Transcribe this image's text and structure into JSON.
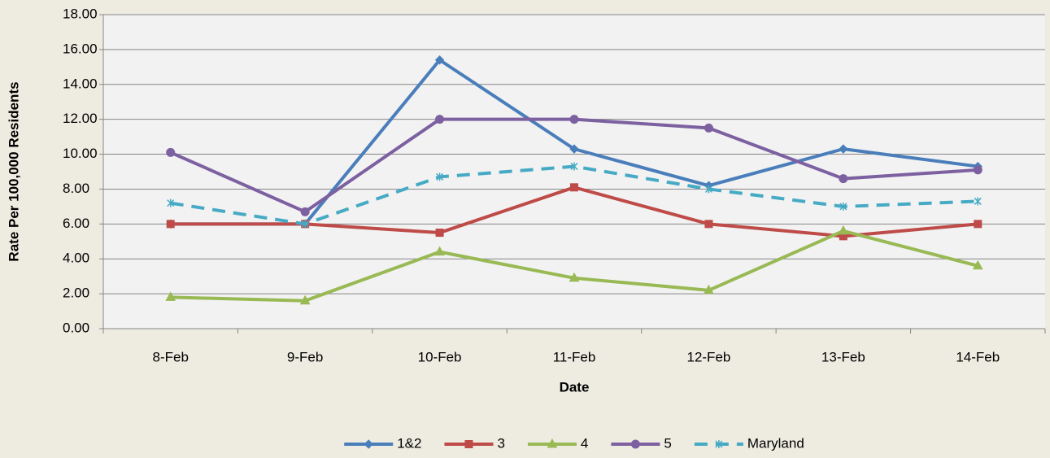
{
  "chart_data": {
    "type": "line",
    "y_label": "Rate Per 100,000 Residents",
    "x_label": "Date",
    "categories": [
      "8-Feb",
      "9-Feb",
      "10-Feb",
      "11-Feb",
      "12-Feb",
      "13-Feb",
      "14-Feb"
    ],
    "series": [
      {
        "name": "1&2",
        "color": "#4a7ebb",
        "marker": "diamond",
        "line_style": "solid",
        "values": [
          6.0,
          6.0,
          15.4,
          10.3,
          8.2,
          10.3,
          9.3
        ]
      },
      {
        "name": "3",
        "color": "#be4b48",
        "marker": "square",
        "line_style": "solid",
        "values": [
          6.0,
          6.0,
          5.5,
          8.1,
          6.0,
          5.3,
          6.0
        ]
      },
      {
        "name": "4",
        "color": "#98b954",
        "marker": "triangle",
        "line_style": "solid",
        "values": [
          1.8,
          1.6,
          4.4,
          2.9,
          2.2,
          5.6,
          3.6
        ]
      },
      {
        "name": "5",
        "color": "#7d60a0",
        "marker": "circle",
        "line_style": "solid",
        "values": [
          10.1,
          6.7,
          12.0,
          12.0,
          11.5,
          8.6,
          9.1
        ]
      },
      {
        "name": "Maryland",
        "color": "#46aac5",
        "marker": "x",
        "line_style": "dashed",
        "values": [
          7.2,
          6.0,
          8.7,
          9.3,
          8.0,
          7.0,
          7.3
        ]
      }
    ],
    "ylim": [
      0,
      18
    ],
    "yticks": [
      {
        "value": 0,
        "label": "0.00"
      },
      {
        "value": 2,
        "label": "2.00"
      },
      {
        "value": 4,
        "label": "4.00"
      },
      {
        "value": 6,
        "label": "6.00"
      },
      {
        "value": 8,
        "label": "8.00"
      },
      {
        "value": 10,
        "label": "10.00"
      },
      {
        "value": 12,
        "label": "12.00"
      },
      {
        "value": 14,
        "label": "14.00"
      },
      {
        "value": 16,
        "label": "16.00"
      },
      {
        "value": 18,
        "label": "18.00"
      }
    ],
    "grid": true,
    "legend_position": "bottom"
  }
}
